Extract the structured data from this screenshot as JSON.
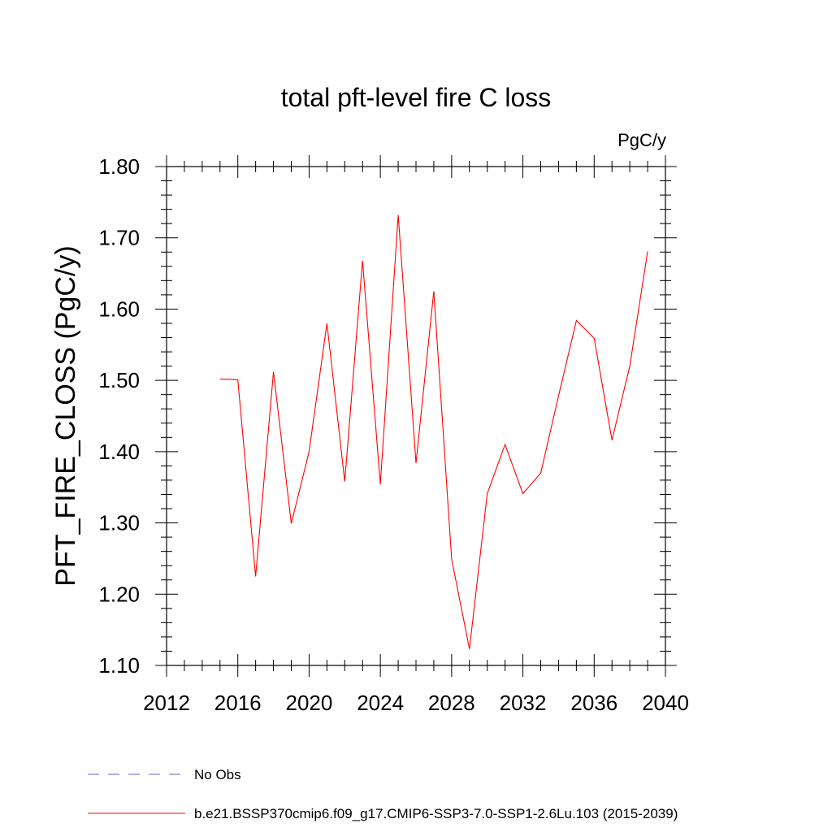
{
  "chart_data": {
    "type": "line",
    "title": "total pft-level fire C loss",
    "units_label": "PgC/y",
    "ylabel": "PFT_FIRE_CLOSS  (PgC/y)",
    "xlabel": "",
    "xlim": [
      2012,
      2040
    ],
    "ylim": [
      1.1,
      1.8
    ],
    "x_ticks": [
      "2012",
      "2016",
      "2020",
      "2024",
      "2028",
      "2032",
      "2036",
      "2040"
    ],
    "y_ticks": [
      "1.10",
      "1.20",
      "1.30",
      "1.40",
      "1.50",
      "1.60",
      "1.70",
      "1.80"
    ],
    "grid": false,
    "legend_placement": "bottom",
    "series": [
      {
        "name": "b.e21.BSSP370cmip6.f09_g17.CMIP6-SSP3-7.0-SSP1-2.6Lu.103 (2015-2039)",
        "color": "#ff0000",
        "style": "solid",
        "x": [
          2015,
          2016,
          2017,
          2018,
          2019,
          2020,
          2021,
          2022,
          2023,
          2024,
          2025,
          2026,
          2027,
          2028,
          2029,
          2030,
          2031,
          2032,
          2033,
          2034,
          2035,
          2036,
          2037,
          2038,
          2039
        ],
        "y": [
          1.502,
          1.501,
          1.225,
          1.512,
          1.299,
          1.4,
          1.58,
          1.358,
          1.668,
          1.354,
          1.732,
          1.384,
          1.625,
          1.249,
          1.123,
          1.341,
          1.41,
          1.341,
          1.37,
          1.478,
          1.584,
          1.559,
          1.416,
          1.52,
          1.681
        ]
      }
    ],
    "legend": [
      {
        "label": "No Obs",
        "color": "#6a5acd",
        "style": "dashed"
      },
      {
        "label": "b.e21.BSSP370cmip6.f09_g17.CMIP6-SSP3-7.0-SSP1-2.6Lu.103 (2015-2039)",
        "color": "#ff0000",
        "style": "solid"
      }
    ]
  }
}
